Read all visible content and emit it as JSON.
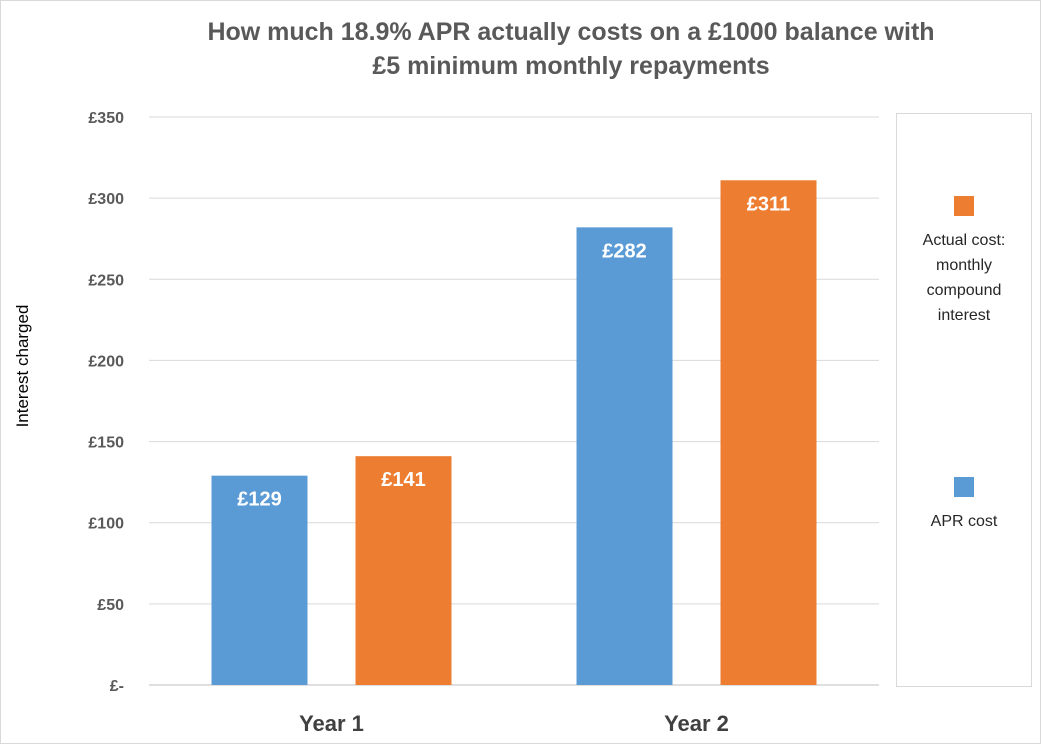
{
  "chart_data": {
    "type": "bar",
    "title_lines": [
      "How much 18.9% APR actually costs on a £1000 balance with",
      "£5 minimum monthly repayments"
    ],
    "ylabel": "Interest charged",
    "xlabel": "",
    "categories": [
      "Year 1",
      "Year 2"
    ],
    "ylim": [
      0,
      350
    ],
    "yticks": [
      0,
      50,
      100,
      150,
      200,
      250,
      300,
      350
    ],
    "ytick_labels": [
      "£-",
      "£50",
      "£100",
      "£150",
      "£200",
      "£250",
      "£300",
      "£350"
    ],
    "grid": true,
    "legend_position": "right",
    "series": [
      {
        "name": "APR cost",
        "color": "#5b9bd5",
        "values": [
          129,
          282
        ],
        "labels": [
          "£129",
          "£282"
        ]
      },
      {
        "name": "Actual cost: monthly compound interest",
        "color": "#ed7d31",
        "values": [
          141,
          311
        ],
        "labels": [
          "£141",
          "£311"
        ]
      }
    ],
    "legend_order": [
      1,
      0
    ]
  }
}
